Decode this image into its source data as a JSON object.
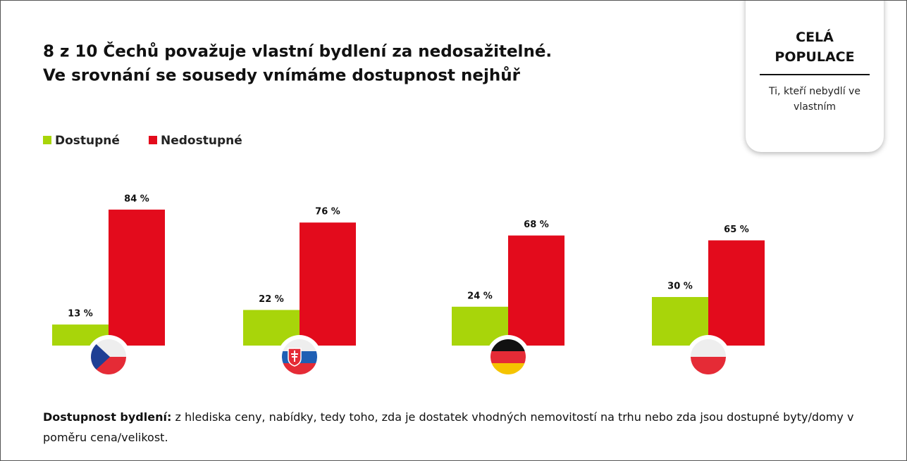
{
  "chart_data": {
    "type": "bar",
    "title": "8 z 10 Čechů považuje vlastní bydlení za nedosažitelné.",
    "subtitle": "Ve srovnání se sousedy vnímáme dostupnost nejhůř",
    "categories": [
      null,
      null,
      null,
      null
    ],
    "series": [
      {
        "name": "Dostupné",
        "color": "#a8d50a",
        "values": [
          13,
          22,
          24,
          30
        ],
        "value_labels": [
          "13 %",
          "22 %",
          "24 %",
          "30 %"
        ]
      },
      {
        "name": "Nedostupné",
        "color": "#e30b1c",
        "values": [
          84,
          76,
          68,
          65
        ],
        "value_labels": [
          "84 %",
          "76 %",
          "68 %",
          "65 %"
        ]
      }
    ]
  },
  "side_panel": {
    "title": "CELÁ POPULACE",
    "subtitle": "Ti, kteří nebydlí ve vlastním"
  },
  "footnote": {
    "term": "Dostupnost bydlení:",
    "text": "z hlediska ceny, nabídky, tedy toho, zda je dostatek vhodných nemovitostí na trhu nebo zda jsou dostupné byty/domy v poměru cena/velikost."
  }
}
